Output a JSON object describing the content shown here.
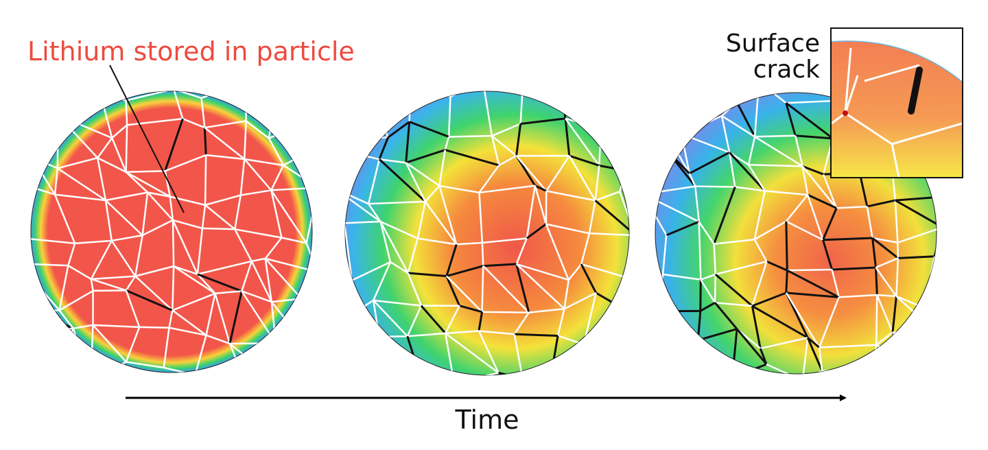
{
  "labels": {
    "lithium": "Lithium stored in particle",
    "surface_crack": [
      "Surface",
      "crack"
    ],
    "time": "Time"
  }
}
